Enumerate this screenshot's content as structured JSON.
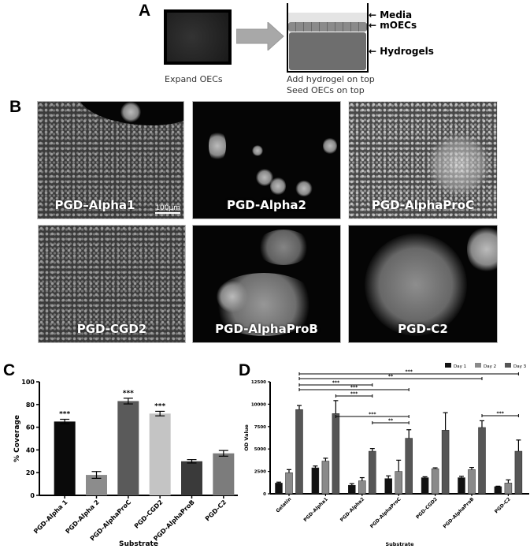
{
  "panel_a": {
    "label": "A",
    "step1_caption": "Expand OECs",
    "step2_caption_line1": "Add hydrogel on top",
    "step2_caption_line2": "Seed OECs on top",
    "well_labels": [
      "Media",
      "mOECs",
      "Hydrogels"
    ]
  },
  "panel_b": {
    "label": "B",
    "scale_bar": "100µm",
    "images": [
      {
        "caption": "PGD–Alpha1"
      },
      {
        "caption": "PGD-Alpha2"
      },
      {
        "caption": "PGD-AlphaProC"
      },
      {
        "caption": "PGD-CGD2"
      },
      {
        "caption": "PGD-AlphaProB"
      },
      {
        "caption": "PGD-C2"
      }
    ]
  },
  "chart_data": [
    {
      "panel": "C",
      "type": "bar",
      "categories": [
        "PGD-Alpha 1",
        "PGD-Alpha 2",
        "PGD-AlphaProC",
        "PGD-CGD2",
        "PGD-AlphaProB",
        "PGD-C2"
      ],
      "values": [
        65,
        18,
        83,
        72,
        30,
        37
      ],
      "errors": [
        2,
        3,
        2.5,
        2,
        1.5,
        2.5
      ],
      "significance": [
        "***",
        "",
        "***",
        "***",
        "",
        ""
      ],
      "colors": [
        "#0a0a0a",
        "#8c8c8c",
        "#5a5a5a",
        "#c4c4c4",
        "#3a3a3a",
        "#7c7c7c"
      ],
      "xlabel": "Substrate",
      "ylabel": "% Coverage",
      "ylim": [
        0,
        100
      ],
      "yticks": [
        0,
        20,
        40,
        60,
        80,
        100
      ],
      "grid": false
    },
    {
      "panel": "D",
      "type": "bar",
      "categories": [
        "Gelatin",
        "PGD-Alpha1",
        "PGD-Alpha2",
        "PGD-AlphaProC",
        "PGD-CGD2",
        "PGD-AlphaProB",
        "PGD-C2"
      ],
      "series": [
        {
          "name": "Day 1",
          "color": "#111111",
          "values": [
            1200,
            2900,
            950,
            1700,
            1800,
            1800,
            800
          ],
          "errors": [
            100,
            200,
            180,
            300,
            100,
            150,
            50
          ]
        },
        {
          "name": "Day 2",
          "color": "#8a8a8a",
          "values": [
            2350,
            3650,
            1450,
            2500,
            2800,
            2700,
            1200
          ],
          "errors": [
            350,
            320,
            350,
            1250,
            100,
            240,
            350
          ]
        },
        {
          "name": "Day 3",
          "color": "#565656",
          "values": [
            9400,
            8950,
            4750,
            6200,
            7100,
            7400,
            4750
          ],
          "errors": [
            450,
            1450,
            300,
            950,
            1950,
            750,
            1250
          ]
        }
      ],
      "comparisons": [
        {
          "from": "Gelatin",
          "to": "PGD-C2",
          "label": "***"
        },
        {
          "from": "Gelatin",
          "to": "PGD-AlphaProB",
          "label": "**"
        },
        {
          "from": "Gelatin",
          "to": "PGD-Alpha2",
          "label": "***"
        },
        {
          "from": "Gelatin",
          "to": "PGD-AlphaProC",
          "label": "***"
        },
        {
          "from": "PGD-Alpha1",
          "to": "PGD-Alpha2",
          "label": "***"
        },
        {
          "from": "PGD-Alpha1",
          "to": "PGD-AlphaProC",
          "label": "***"
        },
        {
          "from": "PGD-Alpha2",
          "to": "PGD-AlphaProC",
          "label": "**"
        },
        {
          "from": "PGD-AlphaProB",
          "to": "PGD-C2",
          "label": "***"
        }
      ],
      "xlabel": "Substrate",
      "ylabel": "OD Value",
      "ylim": [
        0,
        12500
      ],
      "yticks": [
        0,
        2500,
        5000,
        7500,
        10000,
        12500
      ],
      "legend": "top-right",
      "grid": false
    }
  ]
}
